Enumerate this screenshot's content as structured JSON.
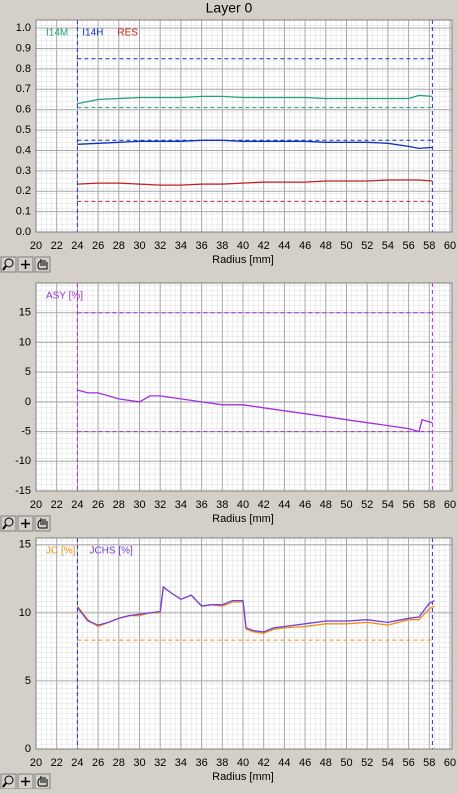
{
  "title": "Layer 0",
  "chart_data": [
    {
      "type": "line",
      "xlabel": "Radius [mm]",
      "x": [
        24,
        26,
        28,
        30,
        32,
        34,
        36,
        38,
        40,
        42,
        44,
        46,
        48,
        50,
        52,
        54,
        56,
        57,
        58.3
      ],
      "series": [
        {
          "name": "I14M",
          "color": "#20a080",
          "values": [
            0.63,
            0.65,
            0.655,
            0.66,
            0.66,
            0.66,
            0.665,
            0.665,
            0.66,
            0.66,
            0.66,
            0.66,
            0.655,
            0.655,
            0.655,
            0.655,
            0.655,
            0.67,
            0.665
          ]
        },
        {
          "name": "I14H",
          "color": "#1030c0",
          "values": [
            0.43,
            0.435,
            0.44,
            0.445,
            0.445,
            0.445,
            0.45,
            0.45,
            0.445,
            0.445,
            0.445,
            0.445,
            0.44,
            0.44,
            0.44,
            0.435,
            0.42,
            0.41,
            0.415
          ]
        },
        {
          "name": "RES",
          "color": "#c02020",
          "values": [
            0.235,
            0.24,
            0.24,
            0.235,
            0.23,
            0.23,
            0.235,
            0.235,
            0.24,
            0.245,
            0.245,
            0.245,
            0.25,
            0.25,
            0.25,
            0.255,
            0.255,
            0.255,
            0.25
          ]
        }
      ],
      "xlim": [
        20,
        60
      ],
      "ylim": [
        0,
        1.04
      ],
      "xticks": [
        20,
        22,
        24,
        26,
        28,
        30,
        32,
        34,
        36,
        38,
        40,
        42,
        44,
        46,
        48,
        50,
        52,
        54,
        56,
        58,
        60
      ],
      "yticks": [
        {
          "value": 0,
          "label": "0.0"
        },
        0.1,
        0.2,
        0.3,
        0.4,
        0.5,
        0.6,
        0.7,
        0.8,
        0.9,
        {
          "value": 1,
          "label": "1.0"
        }
      ],
      "markers": [
        24,
        58.3
      ],
      "marker_color": "#3030c0",
      "reference_lines": [
        {
          "value": 0.85,
          "color": "#1030c0"
        },
        {
          "value": 0.61,
          "color": "#20a080"
        },
        {
          "value": 0.45,
          "color": "#1030c0"
        },
        {
          "value": 0.15,
          "color": "#c02020"
        }
      ],
      "grid": true
    },
    {
      "type": "line",
      "xlabel": "Radius [mm]",
      "x": [
        24,
        25,
        26,
        28,
        30,
        31,
        32,
        34,
        36,
        38,
        40,
        42,
        44,
        46,
        48,
        50,
        52,
        54,
        56,
        57,
        57.3,
        58.3
      ],
      "series": [
        {
          "name": "ASY [%]",
          "color": "#a030e0",
          "values": [
            2,
            1.5,
            1.5,
            0.5,
            0,
            1,
            1,
            0.5,
            0,
            -0.5,
            -0.5,
            -1,
            -1.5,
            -2,
            -2.5,
            -3,
            -3.5,
            -4,
            -4.5,
            -5,
            -3,
            -3.5
          ]
        }
      ],
      "xlim": [
        20,
        60
      ],
      "ylim": [
        -15,
        20
      ],
      "xticks": [
        20,
        22,
        24,
        26,
        28,
        30,
        32,
        34,
        36,
        38,
        40,
        42,
        44,
        46,
        48,
        50,
        52,
        54,
        56,
        58,
        60
      ],
      "yticks": [
        -15,
        -10,
        -5,
        0,
        5,
        10,
        15
      ],
      "markers": [
        24,
        58.3
      ],
      "marker_color": "#a030e0",
      "reference_lines": [
        {
          "value": 15,
          "color": "#a030e0"
        },
        {
          "value": -5,
          "color": "#a030e0"
        }
      ],
      "grid": true
    },
    {
      "type": "line",
      "xlabel": "Radius [mm]",
      "x": [
        24,
        25,
        26,
        27,
        28,
        29,
        30,
        31,
        32,
        32.3,
        33,
        34,
        35,
        36,
        37,
        38,
        39,
        40,
        40.3,
        41,
        42,
        43,
        44,
        46,
        48,
        50,
        52,
        54,
        56,
        57,
        58,
        58.5
      ],
      "series": [
        {
          "name": "JC [%]",
          "color": "#f09010",
          "values": [
            10.5,
            9.5,
            9,
            9.3,
            9.6,
            9.8,
            9.8,
            10,
            10,
            11.9,
            11.5,
            11,
            11.3,
            10.5,
            10.6,
            10.5,
            10.8,
            10.8,
            8.8,
            8.6,
            8.5,
            8.8,
            8.9,
            9,
            9.2,
            9.2,
            9.3,
            9.1,
            9.5,
            9.5,
            10.3,
            10.5
          ]
        },
        {
          "name": "JCHS [%]",
          "color": "#7040e0",
          "values": [
            10.4,
            9.4,
            9.1,
            9.3,
            9.6,
            9.8,
            9.9,
            10,
            10.1,
            11.9,
            11.5,
            11,
            11.3,
            10.5,
            10.6,
            10.6,
            10.9,
            10.9,
            8.9,
            8.7,
            8.6,
            8.9,
            9,
            9.2,
            9.4,
            9.4,
            9.5,
            9.3,
            9.6,
            9.7,
            10.7,
            10.9
          ]
        }
      ],
      "xlim": [
        20,
        60
      ],
      "ylim": [
        0,
        15.5
      ],
      "xticks": [
        20,
        22,
        24,
        26,
        28,
        30,
        32,
        34,
        36,
        38,
        40,
        42,
        44,
        46,
        48,
        50,
        52,
        54,
        56,
        58,
        60
      ],
      "yticks": [
        0,
        5,
        10,
        15
      ],
      "markers": [
        24,
        58.3
      ],
      "marker_color": "#3030c0",
      "reference_lines": [
        {
          "value": 8,
          "color": "#f09010"
        }
      ],
      "grid": true
    }
  ]
}
